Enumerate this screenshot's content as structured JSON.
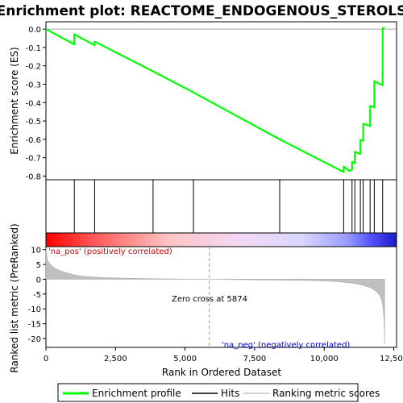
{
  "chart_data": {
    "type": "line",
    "title": "Enrichment plot: REACTOME_ENDOGENOUS_STEROLS",
    "top_panel": {
      "ylabel": "Enrichment score (ES)",
      "ylim": [
        -0.82,
        0.04
      ],
      "yticks": [
        0.0,
        -0.1,
        -0.2,
        -0.3,
        -0.4,
        -0.5,
        -0.6,
        -0.7,
        -0.8
      ],
      "ytick_labels": [
        "0.0",
        "-0.1",
        "-0.2",
        "-0.3",
        "-0.4",
        "-0.5",
        "-0.6",
        "-0.7",
        "-0.8"
      ],
      "series": [
        {
          "name": "Enrichment profile",
          "color": "#00ff00",
          "x": [
            0,
            1020,
            1021,
            1750,
            1751,
            3850,
            5300,
            8400,
            10700,
            10701,
            10900,
            11000,
            11001,
            11100,
            11101,
            11300,
            11301,
            11400,
            11401,
            11650,
            11651,
            11800,
            11801,
            12100,
            12101,
            12170
          ],
          "y": [
            0.0,
            -0.083,
            -0.028,
            -0.088,
            -0.068,
            -0.23,
            -0.345,
            -0.6,
            -0.778,
            -0.748,
            -0.772,
            -0.765,
            -0.722,
            -0.73,
            -0.668,
            -0.68,
            -0.603,
            -0.608,
            -0.515,
            -0.528,
            -0.418,
            -0.426,
            -0.283,
            -0.306,
            0.005,
            0.005
          ]
        }
      ]
    },
    "hits": {
      "name": "Hits",
      "color": "#000000",
      "positions": [
        1020,
        1750,
        3850,
        5300,
        8400,
        10700,
        11000,
        11100,
        11300,
        11400,
        11650,
        11800,
        12100
      ]
    },
    "bottom_panel": {
      "ylabel": "Ranked list metric (PreRanked)",
      "xlabel": "Rank in Ordered Dataset",
      "ylim": [
        -23,
        11
      ],
      "yticks": [
        10,
        5,
        0,
        -5,
        -10,
        -15,
        -20
      ],
      "ytick_labels": [
        "10",
        "5",
        "0",
        "-5",
        "-10",
        "-15",
        "-20"
      ],
      "xlim": [
        0,
        12600
      ],
      "xticks": [
        0,
        2500,
        5000,
        7500,
        10000,
        12500
      ],
      "xtick_labels": [
        "0",
        "2,500",
        "5,000",
        "7,500",
        "10,000",
        "12,500"
      ],
      "series": [
        {
          "name": "Ranking metric scores",
          "color": "#c0c0c0",
          "x": [
            0,
            50,
            150,
            300,
            500,
            800,
            1100,
            1500,
            2000,
            3000,
            4000,
            5874,
            7500,
            9000,
            10000,
            10500,
            11000,
            11400,
            11700,
            11900,
            12000,
            12080,
            12120,
            12150,
            12165,
            12170
          ],
          "y": [
            10.5,
            6.5,
            5.0,
            3.8,
            2.9,
            2.0,
            1.3,
            0.85,
            0.55,
            0.3,
            0.15,
            0.0,
            -0.2,
            -0.35,
            -0.55,
            -0.8,
            -1.3,
            -2.0,
            -3.0,
            -4.3,
            -5.5,
            -7.5,
            -10.0,
            -14.0,
            -19.0,
            -22.0
          ]
        }
      ],
      "annotations": {
        "pos": "'na_pos' (positively correlated)",
        "neg": "'na_neg' (negatively correlated)",
        "zero_cross": "Zero cross at 5874"
      },
      "zero_cross": 5874
    },
    "legend": [
      {
        "label": "Enrichment profile",
        "color": "#00ff00"
      },
      {
        "label": "Hits",
        "color": "#000000"
      },
      {
        "label": "Ranking metric scores",
        "color": "#c0c0c0"
      }
    ],
    "legend_position": "bottom",
    "colorbar_stops": [
      "#ff0000",
      "#ff5555",
      "#ff8888",
      "#ffc4c4",
      "#f4d8f4",
      "#d8d8ff",
      "#9a9aff",
      "#5050ff",
      "#1a1ac8"
    ],
    "colorbar_fractions": [
      0.0,
      0.13,
      0.23,
      0.35,
      0.55,
      0.73,
      0.86,
      0.93,
      1.0
    ]
  }
}
